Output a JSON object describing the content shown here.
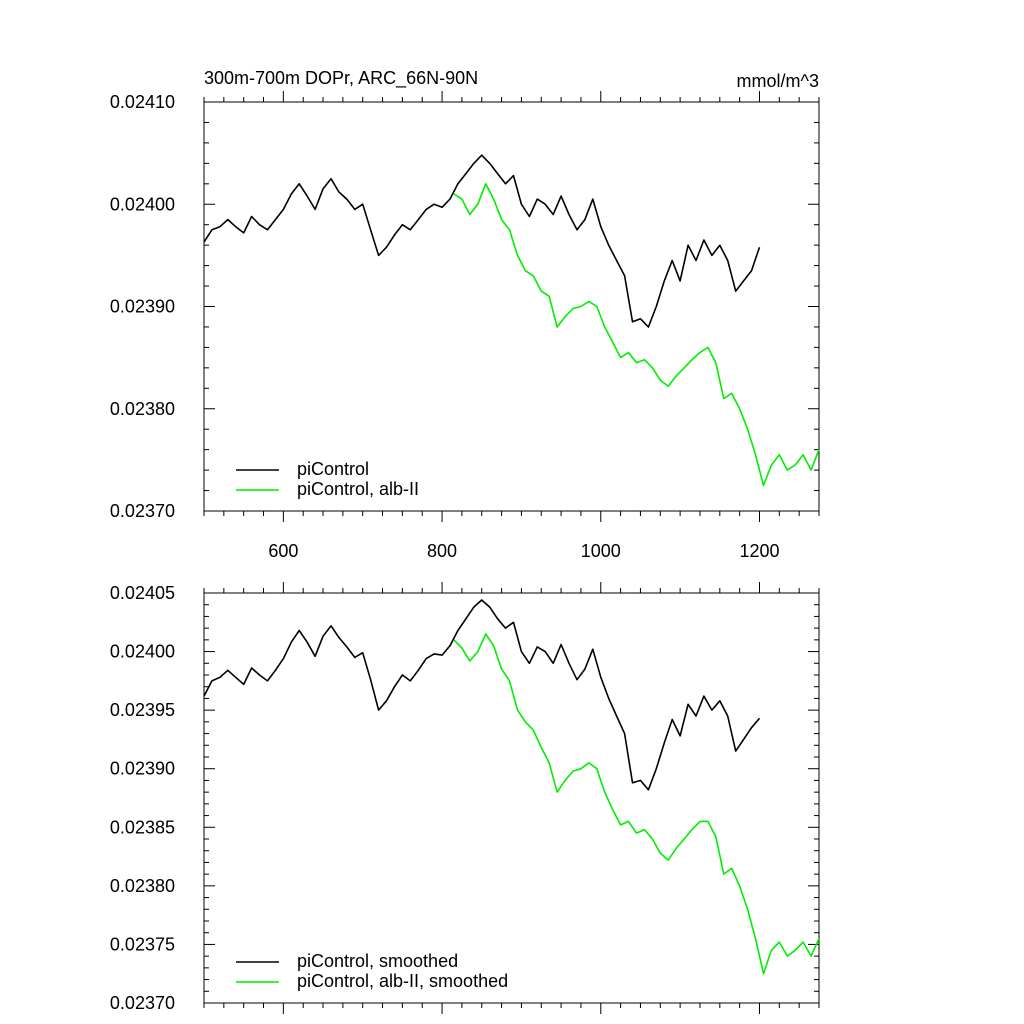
{
  "title_left": "300m-700m DOPr, ARC_66N-90N",
  "title_right": "mmol/m^3",
  "colors": {
    "piControl": "#000000",
    "alb_II": "#00ee00"
  },
  "chart_data": [
    {
      "type": "line",
      "panel": "top",
      "xlim": [
        500,
        1275
      ],
      "ylim": [
        0.0237,
        0.0241
      ],
      "x_ticks": [
        600,
        800,
        1000,
        1200
      ],
      "x_tick_labels": [
        "600",
        "800",
        "1000",
        "1200"
      ],
      "y_ticks": [
        0.0237,
        0.0238,
        0.0239,
        0.024,
        0.0241
      ],
      "y_tick_labels": [
        "0.02370",
        "0.02380",
        "0.02390",
        "0.02400",
        "0.02410"
      ],
      "legend": [
        "piControl",
        "piControl, alb-II"
      ],
      "legend_position": "bottom-left",
      "series": [
        {
          "name": "piControl",
          "color": "#000000",
          "x": [
            500,
            510,
            520,
            530,
            540,
            550,
            560,
            570,
            580,
            590,
            600,
            610,
            620,
            630,
            640,
            650,
            660,
            670,
            680,
            690,
            700,
            710,
            720,
            730,
            740,
            750,
            760,
            770,
            780,
            790,
            800,
            810,
            820,
            830,
            840,
            850,
            860,
            870,
            880,
            890,
            900,
            910,
            920,
            930,
            940,
            950,
            960,
            970,
            980,
            990,
            1000,
            1010,
            1020,
            1030,
            1040,
            1050,
            1060,
            1070,
            1080,
            1090,
            1100,
            1110,
            1120,
            1130,
            1140,
            1150,
            1160,
            1170,
            1180,
            1190,
            1200
          ],
          "y": [
            0.023963,
            0.023975,
            0.023978,
            0.023985,
            0.023978,
            0.023972,
            0.023988,
            0.02398,
            0.023975,
            0.023985,
            0.023995,
            0.02401,
            0.02402,
            0.024008,
            0.023995,
            0.024015,
            0.024025,
            0.024012,
            0.024005,
            0.023995,
            0.024,
            0.023975,
            0.02395,
            0.023958,
            0.02397,
            0.02398,
            0.023975,
            0.023985,
            0.023995,
            0.024,
            0.023997,
            0.024005,
            0.02402,
            0.02403,
            0.02404,
            0.024048,
            0.02404,
            0.02403,
            0.02402,
            0.024028,
            0.024,
            0.023988,
            0.024005,
            0.024,
            0.02399,
            0.024008,
            0.02399,
            0.023975,
            0.023985,
            0.024005,
            0.023978,
            0.02396,
            0.023945,
            0.02393,
            0.023885,
            0.023888,
            0.02388,
            0.0239,
            0.023925,
            0.023945,
            0.023925,
            0.02396,
            0.023945,
            0.023965,
            0.02395,
            0.02396,
            0.023945,
            0.023915,
            0.023925,
            0.023935,
            0.023958
          ]
        },
        {
          "name": "piControl, alb-II",
          "color": "#00ee00",
          "x": [
            815,
            825,
            835,
            845,
            855,
            865,
            875,
            885,
            895,
            905,
            915,
            925,
            935,
            945,
            955,
            965,
            975,
            985,
            995,
            1005,
            1015,
            1025,
            1035,
            1045,
            1055,
            1065,
            1075,
            1085,
            1095,
            1105,
            1115,
            1125,
            1135,
            1145,
            1155,
            1165,
            1175,
            1185,
            1195,
            1205,
            1215,
            1225,
            1235,
            1245,
            1255,
            1265,
            1275
          ],
          "y": [
            0.02401,
            0.024005,
            0.02399,
            0.024,
            0.02402,
            0.024005,
            0.023985,
            0.023975,
            0.02395,
            0.023935,
            0.02393,
            0.023915,
            0.02391,
            0.02388,
            0.02389,
            0.023898,
            0.0239,
            0.023905,
            0.0239,
            0.02388,
            0.023865,
            0.02385,
            0.023855,
            0.023845,
            0.023848,
            0.02384,
            0.023828,
            0.023822,
            0.023832,
            0.02384,
            0.023848,
            0.023855,
            0.02386,
            0.023845,
            0.02381,
            0.023815,
            0.0238,
            0.02378,
            0.023755,
            0.023725,
            0.023745,
            0.023755,
            0.02374,
            0.023745,
            0.023755,
            0.02374,
            0.02376
          ]
        }
      ]
    },
    {
      "type": "line",
      "panel": "bottom",
      "xlim": [
        500,
        1275
      ],
      "ylim": [
        0.0237,
        0.02405
      ],
      "x_ticks": [
        600,
        800,
        1000,
        1200
      ],
      "y_ticks": [
        0.0237,
        0.02375,
        0.0238,
        0.02385,
        0.0239,
        0.02395,
        0.024,
        0.02405
      ],
      "y_tick_labels": [
        "0.02370",
        "0.02375",
        "0.02380",
        "0.02385",
        "0.02390",
        "0.02395",
        "0.02400",
        "0.02405"
      ],
      "legend": [
        "piControl, smoothed",
        "piControl, alb-II, smoothed"
      ],
      "legend_position": "bottom-left",
      "series": [
        {
          "name": "piControl, smoothed",
          "color": "#000000",
          "x": [
            500,
            510,
            520,
            530,
            540,
            550,
            560,
            570,
            580,
            590,
            600,
            610,
            620,
            630,
            640,
            650,
            660,
            670,
            680,
            690,
            700,
            710,
            720,
            730,
            740,
            750,
            760,
            770,
            780,
            790,
            800,
            810,
            820,
            830,
            840,
            850,
            860,
            870,
            880,
            890,
            900,
            910,
            920,
            930,
            940,
            950,
            960,
            970,
            980,
            990,
            1000,
            1010,
            1020,
            1030,
            1040,
            1050,
            1060,
            1070,
            1080,
            1090,
            1100,
            1110,
            1120,
            1130,
            1140,
            1150,
            1160,
            1170,
            1180,
            1190,
            1200
          ],
          "y": [
            0.023962,
            0.023975,
            0.023978,
            0.023984,
            0.023978,
            0.023972,
            0.023986,
            0.02398,
            0.023975,
            0.023984,
            0.023994,
            0.024008,
            0.024018,
            0.024008,
            0.023996,
            0.024013,
            0.024022,
            0.024012,
            0.024004,
            0.023995,
            0.023999,
            0.023976,
            0.02395,
            0.023958,
            0.02397,
            0.02398,
            0.023975,
            0.023984,
            0.023994,
            0.023998,
            0.023997,
            0.024005,
            0.024018,
            0.024028,
            0.024038,
            0.024044,
            0.024038,
            0.024028,
            0.02402,
            0.024025,
            0.024,
            0.02399,
            0.024004,
            0.024,
            0.02399,
            0.024006,
            0.02399,
            0.023976,
            0.023985,
            0.024002,
            0.023978,
            0.02396,
            0.023945,
            0.02393,
            0.023888,
            0.02389,
            0.023882,
            0.0239,
            0.023922,
            0.023942,
            0.023928,
            0.023955,
            0.023945,
            0.023962,
            0.02395,
            0.023958,
            0.023945,
            0.023915,
            0.023925,
            0.023935,
            0.023943
          ]
        },
        {
          "name": "piControl, alb-II, smoothed",
          "color": "#00ee00",
          "x": [
            815,
            825,
            835,
            845,
            855,
            865,
            875,
            885,
            895,
            905,
            915,
            925,
            935,
            945,
            955,
            965,
            975,
            985,
            995,
            1005,
            1015,
            1025,
            1035,
            1045,
            1055,
            1065,
            1075,
            1085,
            1095,
            1105,
            1115,
            1125,
            1135,
            1145,
            1155,
            1165,
            1175,
            1185,
            1195,
            1205,
            1215,
            1225,
            1235,
            1245,
            1255,
            1265,
            1275
          ],
          "y": [
            0.02401,
            0.024003,
            0.023992,
            0.024,
            0.024015,
            0.024005,
            0.023985,
            0.023975,
            0.02395,
            0.02394,
            0.023933,
            0.023918,
            0.023905,
            0.02388,
            0.02389,
            0.023898,
            0.0239,
            0.023905,
            0.0239,
            0.02388,
            0.023865,
            0.023852,
            0.023855,
            0.023845,
            0.023848,
            0.02384,
            0.023828,
            0.023822,
            0.023832,
            0.02384,
            0.023848,
            0.023855,
            0.023855,
            0.023842,
            0.02381,
            0.023815,
            0.0238,
            0.02378,
            0.023755,
            0.023725,
            0.023745,
            0.023752,
            0.02374,
            0.023745,
            0.023752,
            0.02374,
            0.023755
          ]
        }
      ]
    }
  ]
}
